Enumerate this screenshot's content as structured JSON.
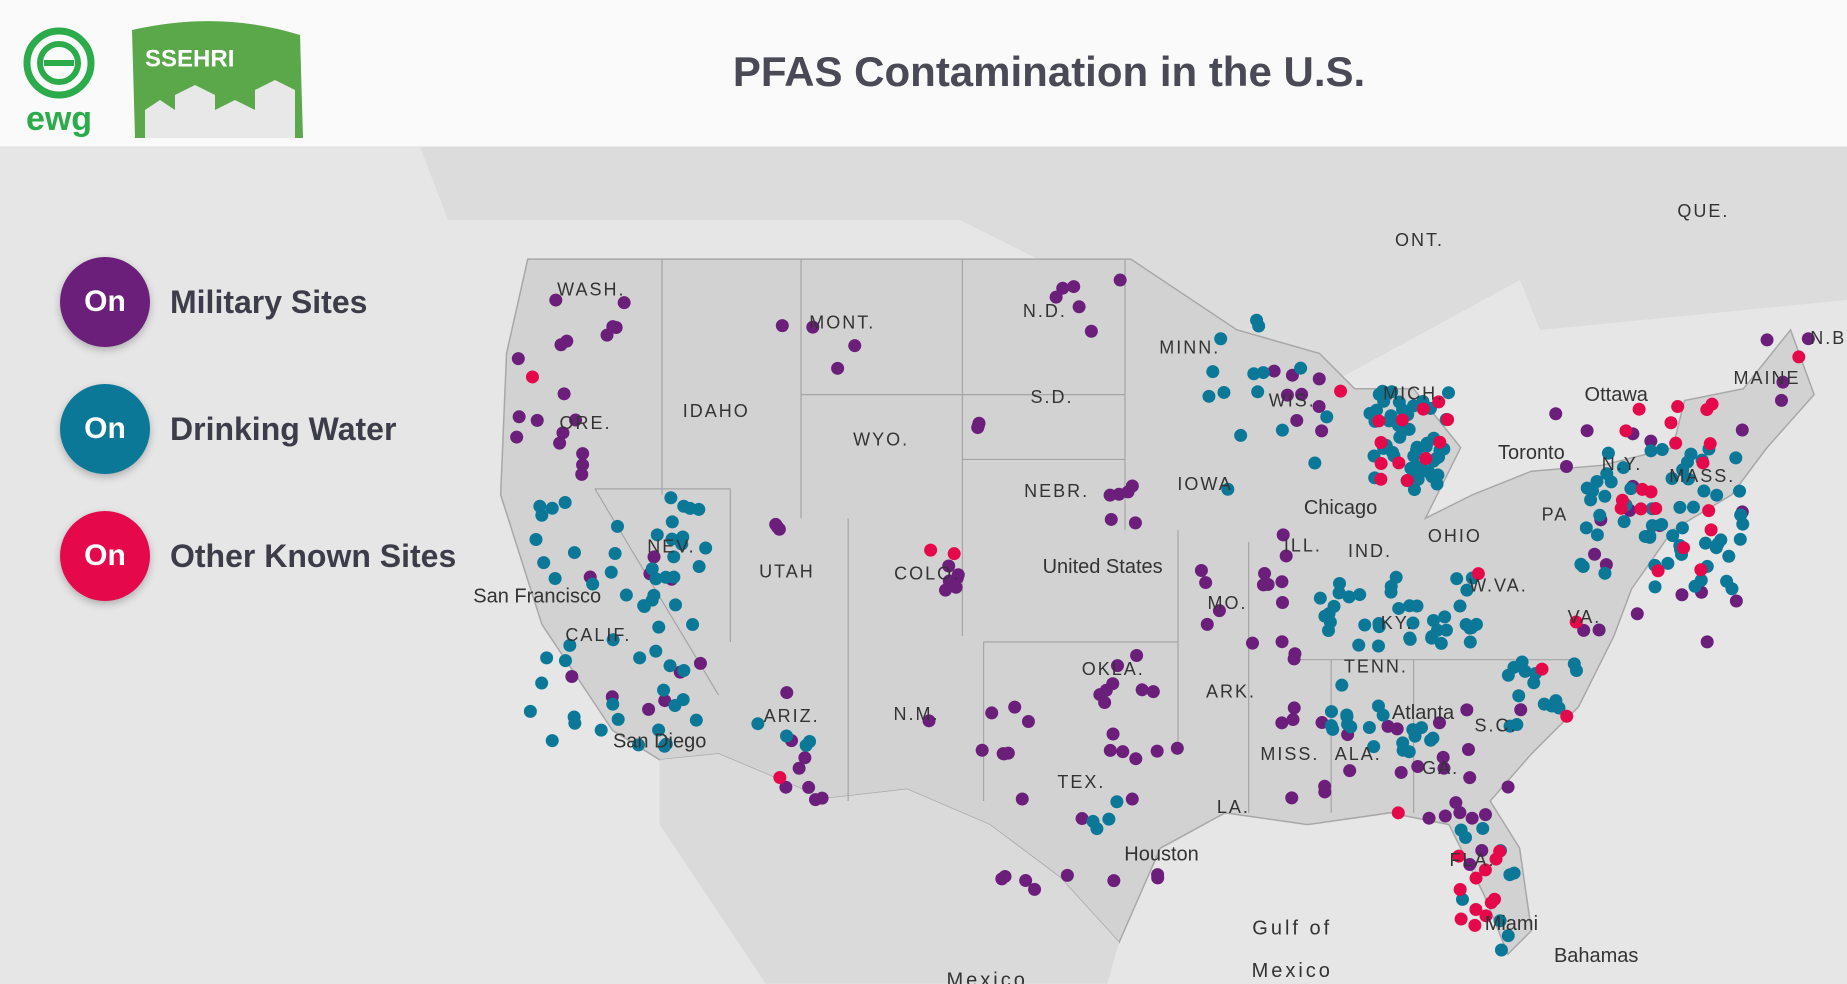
{
  "header": {
    "title": "PFAS Contamination in the U.S.",
    "logos": [
      "ewg",
      "SSEHRI"
    ]
  },
  "legend": [
    {
      "state": "On",
      "label": "Military Sites",
      "color": "#6b1f7b"
    },
    {
      "state": "On",
      "label": "Drinking Water",
      "color": "#0b7898"
    },
    {
      "state": "On",
      "label": "Other Known Sites",
      "color": "#e5094b"
    }
  ],
  "map": {
    "labels": [
      "WASH.",
      "MONT.",
      "N.D.",
      "MINN.",
      "ORE.",
      "IDAHO",
      "S.D.",
      "WYO.",
      "WIS.",
      "MICH.",
      "NEBR.",
      "IOWA",
      "NEV.",
      "UTAH",
      "COLO.",
      "ILL.",
      "IND.",
      "OHIO",
      "PA",
      "N.Y.",
      "MAINE",
      "MASS.",
      "CALIF.",
      "ARIZ.",
      "N.M.",
      "OKLA.",
      "ARK.",
      "MO.",
      "KY.",
      "VA.",
      "W.VA.",
      "TENN.",
      "MISS.",
      "ALA.",
      "GA.",
      "S.C.",
      "TEX.",
      "LA.",
      "FLA.",
      "ONT.",
      "QUE.",
      "N.B.",
      "Ottawa",
      "Toronto",
      "Chicago",
      "San Francisco",
      "San Diego",
      "Houston",
      "Atlanta",
      "Miami",
      "Bahamas",
      "United States",
      "Gulf of",
      "Mexico",
      "Mexico"
    ]
  }
}
